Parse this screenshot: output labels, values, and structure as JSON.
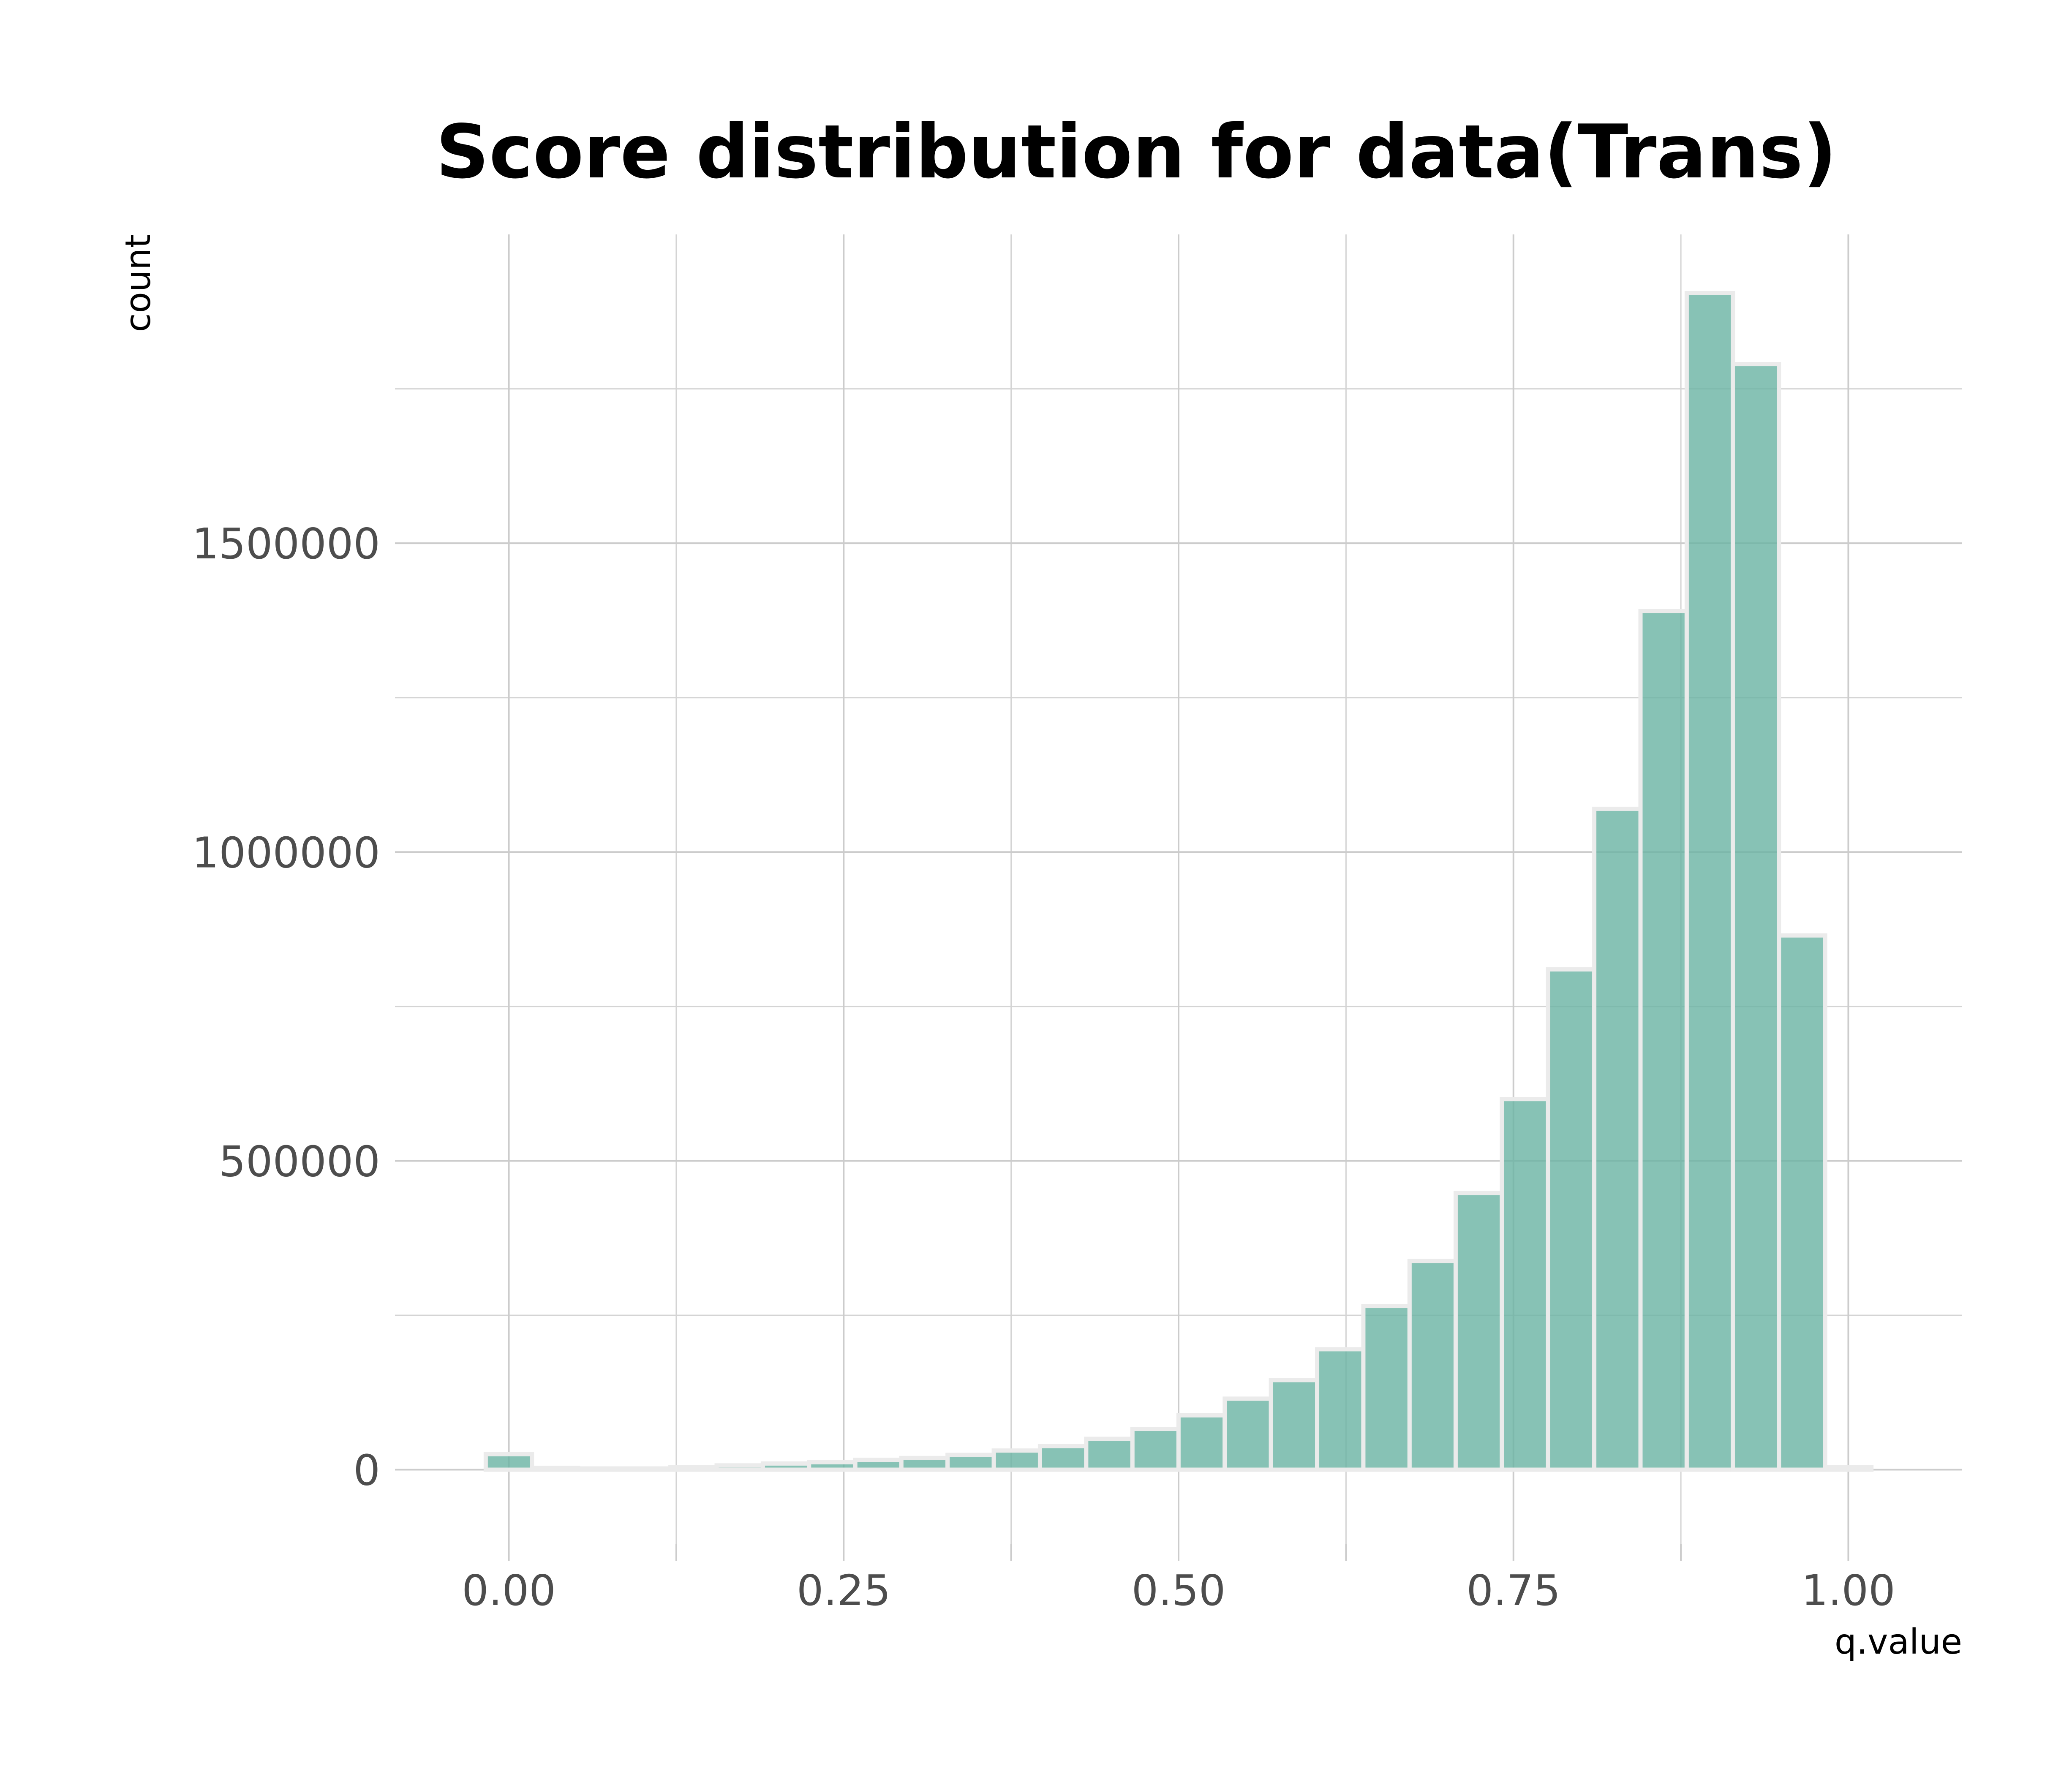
{
  "chart_data": {
    "type": "bar",
    "title": "Score distribution for data(Trans)",
    "xlabel": "q.value",
    "ylabel": "count",
    "xlim": [
      -0.085,
      1.085
    ],
    "ylim": [
      -120000,
      2000000
    ],
    "grid": true,
    "bin_width": 0.0345,
    "x_ticks": [
      {
        "value": 0.0,
        "label": "0.00"
      },
      {
        "value": 0.25,
        "label": "0.25"
      },
      {
        "value": 0.5,
        "label": "0.50"
      },
      {
        "value": 0.75,
        "label": "0.75"
      },
      {
        "value": 1.0,
        "label": "1.00"
      }
    ],
    "x_minor_ticks": [
      0.125,
      0.375,
      0.625,
      0.875
    ],
    "y_ticks": [
      {
        "value": 0,
        "label": "0"
      },
      {
        "value": 500000,
        "label": "500000"
      },
      {
        "value": 1000000,
        "label": "1000000"
      },
      {
        "value": 1500000,
        "label": "1500000"
      }
    ],
    "y_minor_ticks": [
      250000,
      750000,
      1250000,
      1750000
    ],
    "bins": [
      {
        "x": 0.0,
        "count": 25000
      },
      {
        "x": 0.0345,
        "count": 3000
      },
      {
        "x": 0.069,
        "count": 2000
      },
      {
        "x": 0.1034,
        "count": 2000
      },
      {
        "x": 0.1379,
        "count": 4000
      },
      {
        "x": 0.1724,
        "count": 7000
      },
      {
        "x": 0.2069,
        "count": 10000
      },
      {
        "x": 0.2414,
        "count": 12000
      },
      {
        "x": 0.2759,
        "count": 16000
      },
      {
        "x": 0.3103,
        "count": 19000
      },
      {
        "x": 0.3448,
        "count": 24000
      },
      {
        "x": 0.3793,
        "count": 31000
      },
      {
        "x": 0.4138,
        "count": 38000
      },
      {
        "x": 0.4483,
        "count": 50000
      },
      {
        "x": 0.4828,
        "count": 66000
      },
      {
        "x": 0.5172,
        "count": 88000
      },
      {
        "x": 0.5517,
        "count": 115000
      },
      {
        "x": 0.5862,
        "count": 145000
      },
      {
        "x": 0.6207,
        "count": 195000
      },
      {
        "x": 0.6552,
        "count": 265000
      },
      {
        "x": 0.6897,
        "count": 338000
      },
      {
        "x": 0.7241,
        "count": 448000
      },
      {
        "x": 0.7586,
        "count": 600000
      },
      {
        "x": 0.7931,
        "count": 810000
      },
      {
        "x": 0.8276,
        "count": 1070000
      },
      {
        "x": 0.8621,
        "count": 1390000
      },
      {
        "x": 0.8966,
        "count": 1905000
      },
      {
        "x": 0.931,
        "count": 1790000
      },
      {
        "x": 0.9655,
        "count": 865000
      },
      {
        "x": 1.0,
        "count": 4000
      }
    ],
    "colors": {
      "bar_fill": "#69b3a2",
      "bar_opacity": 0.8,
      "bar_stroke": "#ebebeb"
    }
  }
}
